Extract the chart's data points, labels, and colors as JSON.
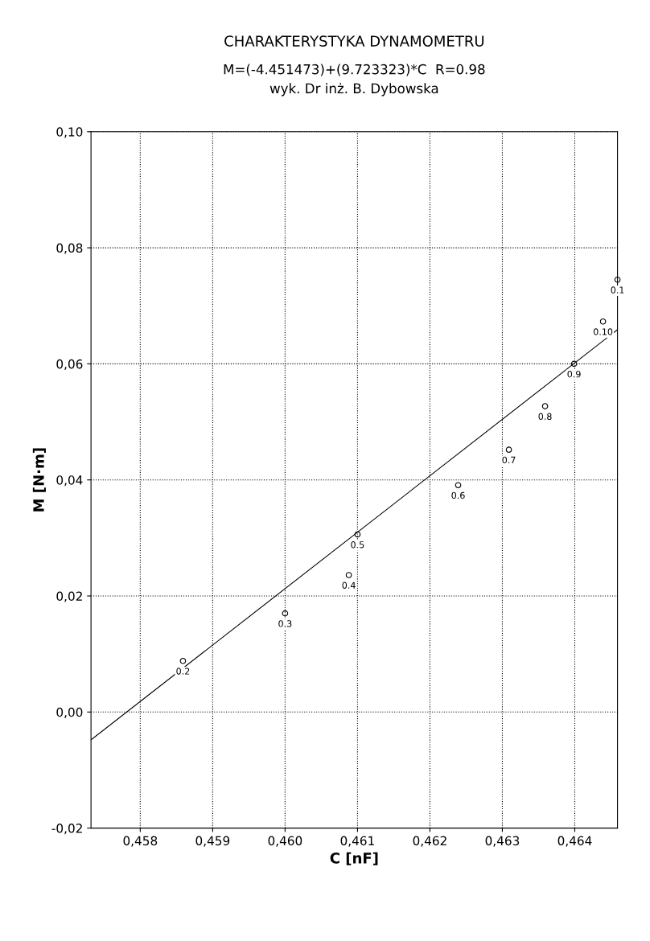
{
  "chart_data": {
    "type": "scatter",
    "title": "CHARAKTERYSTYKA DYNAMOMETRU",
    "subtitle": "M=(-4.451473)+(9.723323)*C  R=0.98\nwyk. Dr inż. B. Dybowska",
    "xlabel": "C [nF]",
    "ylabel": "M [N·m]",
    "series": [
      {
        "color": "#000000",
        "marker": "circle",
        "x": [
          0.45859,
          0.46,
          0.46088,
          0.461,
          0.46239,
          0.46309,
          0.46359,
          0.46399,
          0.46439,
          0.46459
        ],
        "values": [
          0.0088,
          0.017,
          0.0236,
          0.0306,
          0.0391,
          0.0452,
          0.0527,
          0.06,
          0.0673,
          0.0745
        ]
      },
      {
        "type": "line",
        "color": "#000000",
        "marker": "none",
        "line_style": "solid",
        "x": [
          0.45732,
          0.46459
        ],
        "values": [
          -0.0048,
          0.0659
        ]
      }
    ],
    "annotations": [
      {
        "text": "0.2",
        "x": 0.45859,
        "y": 0.0088
      },
      {
        "text": "0.3",
        "x": 0.46,
        "y": 0.017
      },
      {
        "text": "0.4",
        "x": 0.46088,
        "y": 0.0236
      },
      {
        "text": "0.5",
        "x": 0.461,
        "y": 0.0306
      },
      {
        "text": "0.6",
        "x": 0.46239,
        "y": 0.0391
      },
      {
        "text": "0.7",
        "x": 0.46309,
        "y": 0.0452
      },
      {
        "text": "0.8",
        "x": 0.46359,
        "y": 0.0527
      },
      {
        "text": "0.9",
        "x": 0.46399,
        "y": 0.06
      },
      {
        "text": "0.10",
        "x": 0.46439,
        "y": 0.0673
      },
      {
        "text": "0.1",
        "x": 0.46459,
        "y": 0.0745
      }
    ],
    "xlim": [
      0.45732,
      0.46459
    ],
    "xticks": [
      {
        "value": 0.458,
        "label": "0,458"
      },
      {
        "value": 0.459,
        "label": "0,459"
      },
      {
        "value": 0.46,
        "label": "0,460"
      },
      {
        "value": 0.461,
        "label": "0,461"
      },
      {
        "value": 0.462,
        "label": "0,462"
      },
      {
        "value": 0.463,
        "label": "0,463"
      },
      {
        "value": 0.464,
        "label": "0,464"
      }
    ],
    "ylim": [
      -0.02,
      0.1
    ],
    "yticks": [
      {
        "value": -0.02,
        "label": "-0,02"
      },
      {
        "value": 0.0,
        "label": "0,00"
      },
      {
        "value": 0.02,
        "label": "0,02"
      },
      {
        "value": 0.04,
        "label": "0,04"
      },
      {
        "value": 0.06,
        "label": "0,06"
      },
      {
        "value": 0.08,
        "label": "0,08"
      },
      {
        "value": 0.1,
        "label": "0,10"
      }
    ],
    "grid": true
  }
}
